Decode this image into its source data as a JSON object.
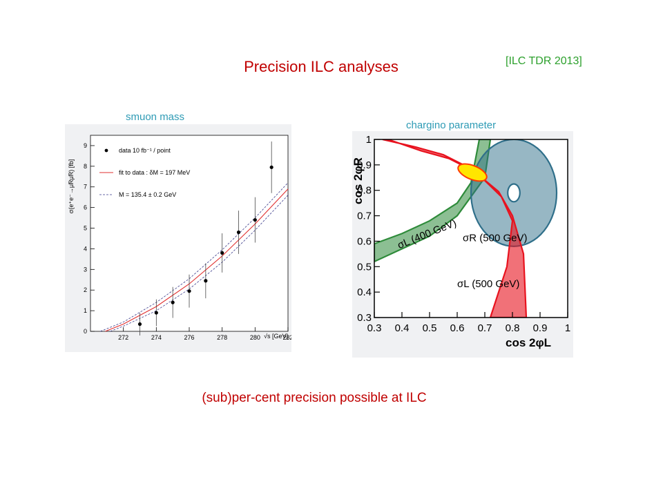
{
  "slide": {
    "title": "Precision ILC analyses",
    "citation": "[ILC TDR 2013]",
    "footer": "(sub)per-cent precision possible at ILC"
  },
  "colors": {
    "title": "#c00000",
    "citation": "#2ca02c",
    "plot_title": "#2e9bb5"
  },
  "chart_data": [
    {
      "type": "scatter",
      "title": "smuon mass",
      "xlabel": "√s [GeV]",
      "ylabel": "σ(e⁺e⁻→μ̃Rμ̃R) [fb]",
      "xlim": [
        270,
        282
      ],
      "ylim": [
        0,
        9.5
      ],
      "xticks": [
        272,
        274,
        276,
        278,
        280,
        282
      ],
      "yticks": [
        0,
        1,
        2,
        3,
        4,
        5,
        6,
        7,
        8,
        9
      ],
      "legend": [
        {
          "label": "data 10 fb⁻¹ / point",
          "style": "dot"
        },
        {
          "label": "fit to data : δM = 197 MeV",
          "style": "red-line"
        },
        {
          "label": "M = 135.4 ± 0.2 GeV",
          "style": "dashed"
        }
      ],
      "points": [
        {
          "x": 273,
          "y": 0.35,
          "err": 0.55
        },
        {
          "x": 274,
          "y": 0.9,
          "err": 0.65
        },
        {
          "x": 275,
          "y": 1.4,
          "err": 0.75
        },
        {
          "x": 276,
          "y": 1.95,
          "err": 0.8
        },
        {
          "x": 277,
          "y": 2.45,
          "err": 0.85
        },
        {
          "x": 278,
          "y": 3.8,
          "err": 0.95
        },
        {
          "x": 279,
          "y": 4.8,
          "err": 1.05
        },
        {
          "x": 280,
          "y": 5.4,
          "err": 1.1
        },
        {
          "x": 281,
          "y": 7.95,
          "err": 1.25
        }
      ],
      "fit": {
        "x": [
          270.9,
          272,
          274,
          276,
          278,
          280,
          282
        ],
        "y": [
          0,
          0.35,
          1.2,
          2.3,
          3.65,
          5.2,
          6.9
        ]
      },
      "band_upper": {
        "x": [
          270.6,
          272,
          274,
          276,
          278,
          280,
          282
        ],
        "y": [
          0,
          0.45,
          1.4,
          2.55,
          3.95,
          5.5,
          7.2
        ]
      },
      "band_lower": {
        "x": [
          271.2,
          272,
          274,
          276,
          278,
          280,
          282
        ],
        "y": [
          0,
          0.25,
          1.0,
          2.05,
          3.35,
          4.9,
          6.6
        ]
      }
    },
    {
      "type": "area",
      "title": "chargino parameter",
      "xlabel": "cos 2φL",
      "ylabel": "cos 2φR",
      "xlim": [
        0.3,
        1
      ],
      "ylim": [
        0.3,
        1
      ],
      "xticks": [
        "0.3",
        "0.4",
        "0.5",
        "0.6",
        "0.7",
        "0.8",
        "0.9",
        "1"
      ],
      "yticks": [
        "0.3",
        "0.4",
        "0.5",
        "0.6",
        "0.7",
        "0.8",
        "0.9",
        "1"
      ],
      "regions": [
        {
          "label": "σL (400 GeV)",
          "color": "#2e8b3a",
          "upper": {
            "x": [
              0.3,
              0.4,
              0.5,
              0.6,
              0.65,
              0.68
            ],
            "y": [
              0.59,
              0.63,
              0.68,
              0.75,
              0.83,
              1.0
            ]
          },
          "lower": {
            "x": [
              0.3,
              0.4,
              0.5,
              0.6,
              0.7,
              0.72
            ],
            "y": [
              0.52,
              0.57,
              0.62,
              0.7,
              0.85,
              1.0
            ]
          }
        },
        {
          "label": "σR (500 GeV)",
          "color": "#2f6f8a",
          "center": [
            0.805,
            0.79
          ],
          "outer_radius": [
            0.155,
            0.21
          ],
          "inner_radius": [
            0.022,
            0.035
          ]
        },
        {
          "label": "σL (500 GeV)",
          "color": "#e8121e",
          "upper": {
            "x": [
              0.33,
              0.45,
              0.55,
              0.65,
              0.75,
              0.8,
              0.84,
              0.85
            ],
            "y": [
              1.0,
              0.97,
              0.94,
              0.885,
              0.795,
              0.7,
              0.55,
              0.3
            ]
          },
          "lower": {
            "x": [
              0.35,
              0.47,
              0.57,
              0.67,
              0.76,
              0.8,
              0.78,
              0.72
            ],
            "y": [
              1.0,
              0.955,
              0.925,
              0.87,
              0.775,
              0.68,
              0.5,
              0.3
            ]
          }
        }
      ],
      "best_fit": {
        "x": 0.655,
        "y": 0.87,
        "color": "#ffe600",
        "edge": "#ff3b00"
      }
    }
  ]
}
